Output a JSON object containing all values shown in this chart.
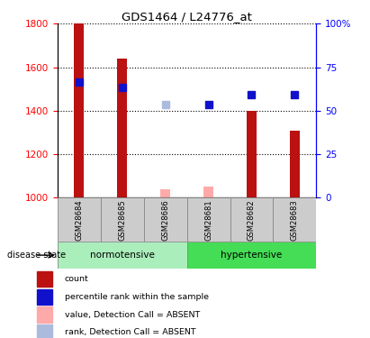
{
  "title": "GDS1464 / L24776_at",
  "samples": [
    "GSM28684",
    "GSM28685",
    "GSM28686",
    "GSM28681",
    "GSM28682",
    "GSM28683"
  ],
  "group_normotensive": {
    "label": "normotensive",
    "indices": [
      0,
      1,
      2
    ],
    "color": "#AAEEBB"
  },
  "group_hypertensive": {
    "label": "hypertensive",
    "indices": [
      3,
      4,
      5
    ],
    "color": "#44DD55"
  },
  "bar_values": [
    1800,
    1640,
    1040,
    1050,
    1400,
    1310
  ],
  "bar_absent": [
    false,
    false,
    true,
    true,
    false,
    false
  ],
  "bar_color_present": "#BB1111",
  "bar_color_absent": "#FFAAAA",
  "rank_values": [
    1530,
    1505,
    null,
    1430,
    1475,
    1475
  ],
  "rank_absent_values": [
    null,
    null,
    1430,
    null,
    null,
    null
  ],
  "rank_color_present": "#1111CC",
  "rank_color_absent": "#AABBDD",
  "ylim_left": [
    1000,
    1800
  ],
  "ylim_right": [
    0,
    100
  ],
  "yticks_left": [
    1000,
    1200,
    1400,
    1600,
    1800
  ],
  "yticks_right": [
    0,
    25,
    50,
    75,
    100
  ],
  "bar_width": 0.22,
  "disease_state_label": "disease state",
  "legend_items": [
    {
      "color": "#BB1111",
      "label": "count"
    },
    {
      "color": "#1111CC",
      "label": "percentile rank within the sample"
    },
    {
      "color": "#FFAAAA",
      "label": "value, Detection Call = ABSENT"
    },
    {
      "color": "#AABBDD",
      "label": "rank, Detection Call = ABSENT"
    }
  ]
}
